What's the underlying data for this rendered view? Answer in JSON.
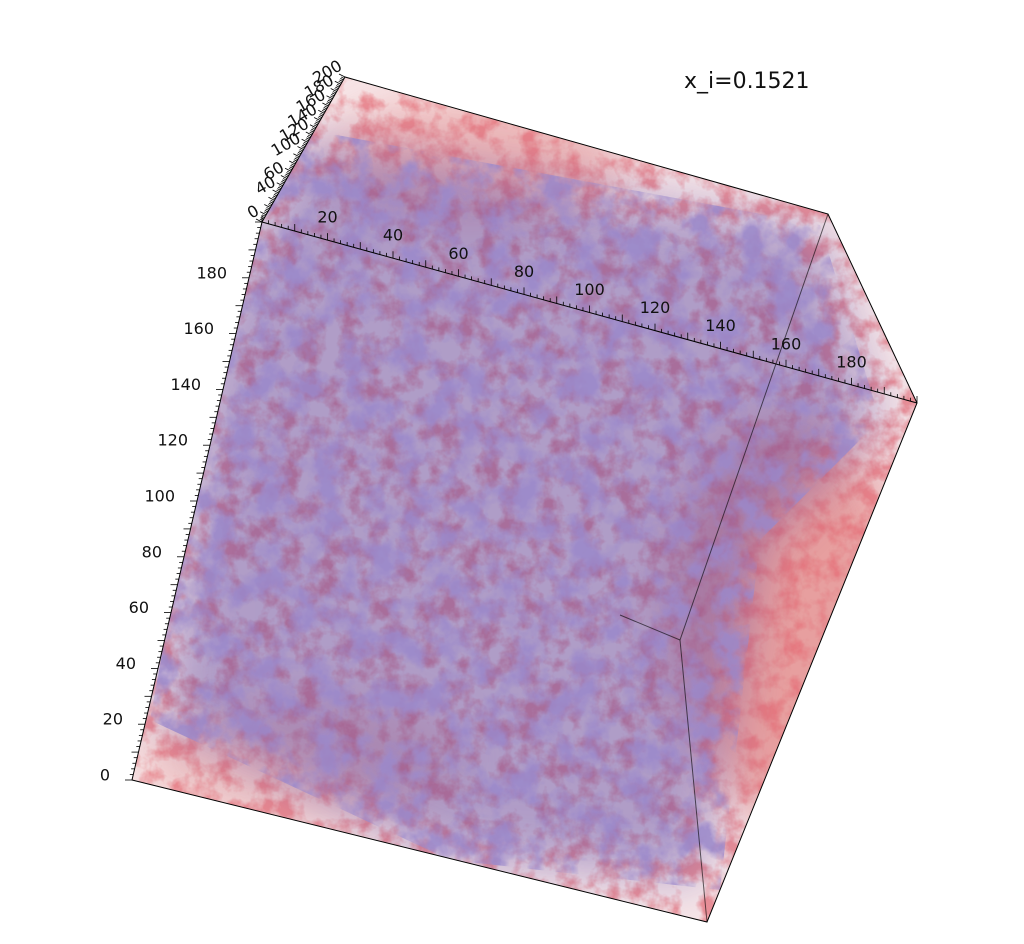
{
  "annotation": "x_i=0.1521",
  "axes": {
    "x": {
      "ticks": [
        "20",
        "40",
        "60",
        "80",
        "100",
        "120",
        "140",
        "160",
        "180"
      ]
    },
    "y": {
      "ticks": [
        "0",
        "20",
        "40",
        "60",
        "80",
        "100",
        "120",
        "140",
        "160",
        "180"
      ]
    },
    "z": {
      "ticks": [
        "0",
        "180",
        "160",
        "140",
        "120",
        "100",
        "60",
        "40",
        "200"
      ]
    }
  }
}
